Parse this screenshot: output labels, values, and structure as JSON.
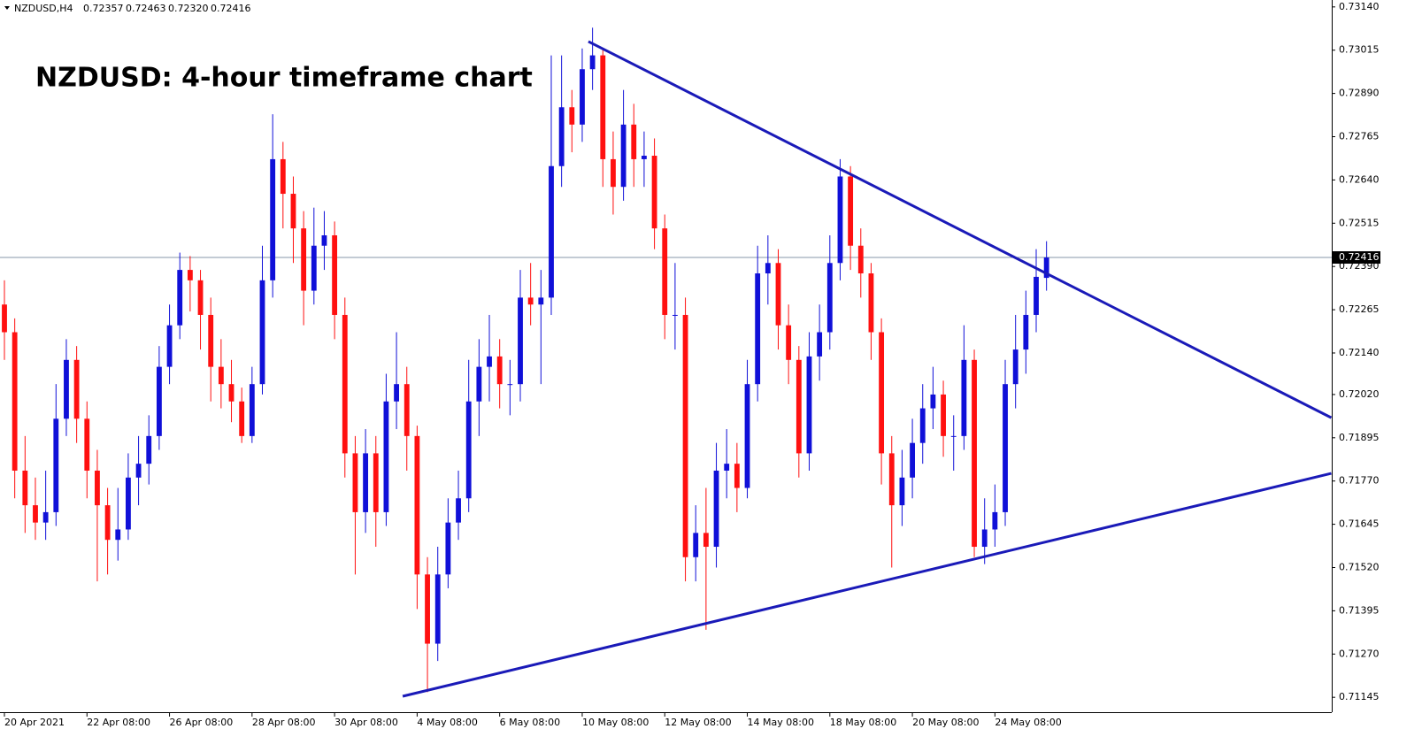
{
  "header": {
    "symbol": "NZDUSD,H4",
    "ohlc": [
      "0.72357",
      "0.72463",
      "0.72320",
      "0.72416"
    ]
  },
  "chart_data": {
    "type": "candlestick",
    "title": "NZDUSD: 4-hour timeframe chart",
    "up_color": "#1010d8",
    "down_color": "#ff1010",
    "xlim": [
      -0.4288,
      128.645
    ],
    "ylim": [
      0.71102,
      0.7316
    ],
    "yticks": [
      {
        "value": 0.7314,
        "label": "0.73140"
      },
      {
        "value": 0.73015,
        "label": "0.73015"
      },
      {
        "value": 0.7289,
        "label": "0.72890"
      },
      {
        "value": 0.72765,
        "label": "0.72765"
      },
      {
        "value": 0.7264,
        "label": "0.72640"
      },
      {
        "value": 0.72515,
        "label": "0.72515"
      },
      {
        "value": 0.7239,
        "label": "0.72390"
      },
      {
        "value": 0.72265,
        "label": "0.72265"
      },
      {
        "value": 0.7214,
        "label": "0.72140"
      },
      {
        "value": 0.7202,
        "label": "0.72020"
      },
      {
        "value": 0.71895,
        "label": "0.71895"
      },
      {
        "value": 0.7177,
        "label": "0.71770"
      },
      {
        "value": 0.71645,
        "label": "0.71645"
      },
      {
        "value": 0.7152,
        "label": "0.71520"
      },
      {
        "value": 0.71395,
        "label": "0.71395"
      },
      {
        "value": 0.7127,
        "label": "0.71270"
      },
      {
        "value": 0.71145,
        "label": "0.71145"
      }
    ],
    "current_price": {
      "value": 0.72416,
      "label": "0.72416"
    },
    "categories": [
      "20 Apr 2021",
      null,
      null,
      null,
      null,
      null,
      null,
      null,
      "22 Apr 08:00",
      null,
      null,
      null,
      null,
      null,
      null,
      null,
      "26 Apr 08:00",
      null,
      null,
      null,
      null,
      null,
      null,
      null,
      "28 Apr 08:00",
      null,
      null,
      null,
      null,
      null,
      null,
      null,
      "30 Apr 08:00",
      null,
      null,
      null,
      null,
      null,
      null,
      null,
      "4 May 08:00",
      null,
      null,
      null,
      null,
      null,
      null,
      null,
      "6 May 08:00",
      null,
      null,
      null,
      null,
      null,
      null,
      null,
      "10 May 08:00",
      null,
      null,
      null,
      null,
      null,
      null,
      null,
      "12 May 08:00",
      null,
      null,
      null,
      null,
      null,
      null,
      null,
      "14 May 08:00",
      null,
      null,
      null,
      null,
      null,
      null,
      null,
      "18 May 08:00",
      null,
      null,
      null,
      null,
      null,
      null,
      null,
      "20 May 08:00",
      null,
      null,
      null,
      null,
      null,
      null,
      null,
      "24 May 08:00",
      null,
      null,
      null,
      null,
      null
    ],
    "ohlc": [
      [
        0.7228,
        0.7235,
        0.7212,
        0.722
      ],
      [
        0.722,
        0.7224,
        0.7172,
        0.718
      ],
      [
        0.718,
        0.719,
        0.7162,
        0.717
      ],
      [
        0.717,
        0.7178,
        0.716,
        0.7165
      ],
      [
        0.7165,
        0.718,
        0.716,
        0.7168
      ],
      [
        0.7168,
        0.7205,
        0.7164,
        0.7195
      ],
      [
        0.7195,
        0.7218,
        0.719,
        0.7212
      ],
      [
        0.7212,
        0.7216,
        0.7188,
        0.7195
      ],
      [
        0.7195,
        0.72,
        0.7172,
        0.718
      ],
      [
        0.718,
        0.7186,
        0.7148,
        0.717
      ],
      [
        0.717,
        0.7175,
        0.715,
        0.716
      ],
      [
        0.716,
        0.7175,
        0.7154,
        0.7163
      ],
      [
        0.7163,
        0.7185,
        0.716,
        0.7178
      ],
      [
        0.7178,
        0.719,
        0.717,
        0.7182
      ],
      [
        0.7182,
        0.7196,
        0.7176,
        0.719
      ],
      [
        0.719,
        0.7216,
        0.7186,
        0.721
      ],
      [
        0.721,
        0.7228,
        0.7205,
        0.7222
      ],
      [
        0.7222,
        0.7243,
        0.7218,
        0.7238
      ],
      [
        0.7238,
        0.7242,
        0.7226,
        0.7235
      ],
      [
        0.7235,
        0.7238,
        0.7215,
        0.7225
      ],
      [
        0.7225,
        0.723,
        0.72,
        0.721
      ],
      [
        0.721,
        0.7218,
        0.7198,
        0.7205
      ],
      [
        0.7205,
        0.7212,
        0.7194,
        0.72
      ],
      [
        0.72,
        0.7204,
        0.7188,
        0.719
      ],
      [
        0.719,
        0.721,
        0.7188,
        0.7205
      ],
      [
        0.7205,
        0.7245,
        0.7202,
        0.7235
      ],
      [
        0.7235,
        0.7283,
        0.723,
        0.727
      ],
      [
        0.727,
        0.7275,
        0.725,
        0.726
      ],
      [
        0.726,
        0.7265,
        0.724,
        0.725
      ],
      [
        0.725,
        0.7255,
        0.7222,
        0.7232
      ],
      [
        0.7232,
        0.7256,
        0.7228,
        0.7245
      ],
      [
        0.7245,
        0.7255,
        0.7238,
        0.7248
      ],
      [
        0.7248,
        0.7252,
        0.7218,
        0.7225
      ],
      [
        0.7225,
        0.723,
        0.7178,
        0.7185
      ],
      [
        0.7185,
        0.719,
        0.715,
        0.7168
      ],
      [
        0.7168,
        0.7192,
        0.7162,
        0.7185
      ],
      [
        0.7185,
        0.719,
        0.7158,
        0.7168
      ],
      [
        0.7168,
        0.7208,
        0.7164,
        0.72
      ],
      [
        0.72,
        0.722,
        0.7192,
        0.7205
      ],
      [
        0.7205,
        0.721,
        0.718,
        0.719
      ],
      [
        0.719,
        0.7193,
        0.714,
        0.715
      ],
      [
        0.715,
        0.7155,
        0.7116,
        0.713
      ],
      [
        0.713,
        0.7158,
        0.7125,
        0.715
      ],
      [
        0.715,
        0.7172,
        0.7146,
        0.7165
      ],
      [
        0.7165,
        0.718,
        0.716,
        0.7172
      ],
      [
        0.7172,
        0.7212,
        0.7168,
        0.72
      ],
      [
        0.72,
        0.7218,
        0.719,
        0.721
      ],
      [
        0.721,
        0.7225,
        0.72,
        0.7213
      ],
      [
        0.7213,
        0.7218,
        0.7198,
        0.7205
      ],
      [
        0.7205,
        0.7212,
        0.7196,
        0.7205
      ],
      [
        0.7205,
        0.7238,
        0.72,
        0.723
      ],
      [
        0.723,
        0.724,
        0.7222,
        0.7228
      ],
      [
        0.7228,
        0.7238,
        0.7205,
        0.723
      ],
      [
        0.723,
        0.73,
        0.7225,
        0.7268
      ],
      [
        0.7268,
        0.73,
        0.7262,
        0.7285
      ],
      [
        0.7285,
        0.729,
        0.7272,
        0.728
      ],
      [
        0.728,
        0.7302,
        0.7275,
        0.7296
      ],
      [
        0.7296,
        0.7308,
        0.729,
        0.73
      ],
      [
        0.73,
        0.7302,
        0.7262,
        0.727
      ],
      [
        0.727,
        0.7278,
        0.7254,
        0.7262
      ],
      [
        0.7262,
        0.729,
        0.7258,
        0.728
      ],
      [
        0.728,
        0.7286,
        0.7262,
        0.727
      ],
      [
        0.727,
        0.7278,
        0.7262,
        0.7271
      ],
      [
        0.7271,
        0.7276,
        0.7244,
        0.725
      ],
      [
        0.725,
        0.7254,
        0.7218,
        0.7225
      ],
      [
        0.7225,
        0.724,
        0.7215,
        0.7225
      ],
      [
        0.7225,
        0.723,
        0.7148,
        0.7155
      ],
      [
        0.7155,
        0.717,
        0.7148,
        0.7162
      ],
      [
        0.7162,
        0.7175,
        0.7134,
        0.7158
      ],
      [
        0.7158,
        0.7188,
        0.7152,
        0.718
      ],
      [
        0.718,
        0.7192,
        0.7172,
        0.7182
      ],
      [
        0.7182,
        0.7188,
        0.7168,
        0.7175
      ],
      [
        0.7175,
        0.7212,
        0.7172,
        0.7205
      ],
      [
        0.7205,
        0.7245,
        0.72,
        0.7237
      ],
      [
        0.7237,
        0.7248,
        0.7228,
        0.724
      ],
      [
        0.724,
        0.7244,
        0.7215,
        0.7222
      ],
      [
        0.7222,
        0.7228,
        0.7205,
        0.7212
      ],
      [
        0.7212,
        0.7216,
        0.7178,
        0.7185
      ],
      [
        0.7185,
        0.722,
        0.718,
        0.7213
      ],
      [
        0.7213,
        0.7228,
        0.7206,
        0.722
      ],
      [
        0.722,
        0.7248,
        0.7215,
        0.724
      ],
      [
        0.724,
        0.727,
        0.7235,
        0.7265
      ],
      [
        0.7265,
        0.7268,
        0.7238,
        0.7245
      ],
      [
        0.7245,
        0.725,
        0.723,
        0.7237
      ],
      [
        0.7237,
        0.724,
        0.7212,
        0.722
      ],
      [
        0.722,
        0.7224,
        0.7176,
        0.7185
      ],
      [
        0.7185,
        0.719,
        0.7152,
        0.717
      ],
      [
        0.717,
        0.7186,
        0.7164,
        0.7178
      ],
      [
        0.7178,
        0.7195,
        0.7172,
        0.7188
      ],
      [
        0.7188,
        0.7205,
        0.7182,
        0.7198
      ],
      [
        0.7198,
        0.721,
        0.7192,
        0.7202
      ],
      [
        0.7202,
        0.7206,
        0.7184,
        0.719
      ],
      [
        0.719,
        0.7196,
        0.718,
        0.719
      ],
      [
        0.719,
        0.7222,
        0.7186,
        0.7212
      ],
      [
        0.7212,
        0.7215,
        0.7155,
        0.7158
      ],
      [
        0.7158,
        0.7172,
        0.7153,
        0.7163
      ],
      [
        0.7163,
        0.7176,
        0.7158,
        0.7168
      ],
      [
        0.7168,
        0.7212,
        0.7164,
        0.7205
      ],
      [
        0.7205,
        0.7225,
        0.7198,
        0.7215
      ],
      [
        0.7215,
        0.7232,
        0.7208,
        0.7225
      ],
      [
        0.7225,
        0.7244,
        0.722,
        0.7236
      ],
      [
        0.72357,
        0.72463,
        0.7232,
        0.72416
      ]
    ],
    "trendlines": [
      {
        "x": [
          56.6,
          128.6
        ],
        "y": [
          0.7304,
          0.71953
        ],
        "color": "#1a1ab8"
      },
      {
        "x": [
          38.6,
          128.6
        ],
        "y": [
          0.71148,
          0.71792
        ],
        "color": "#1a1ab8"
      }
    ]
  }
}
